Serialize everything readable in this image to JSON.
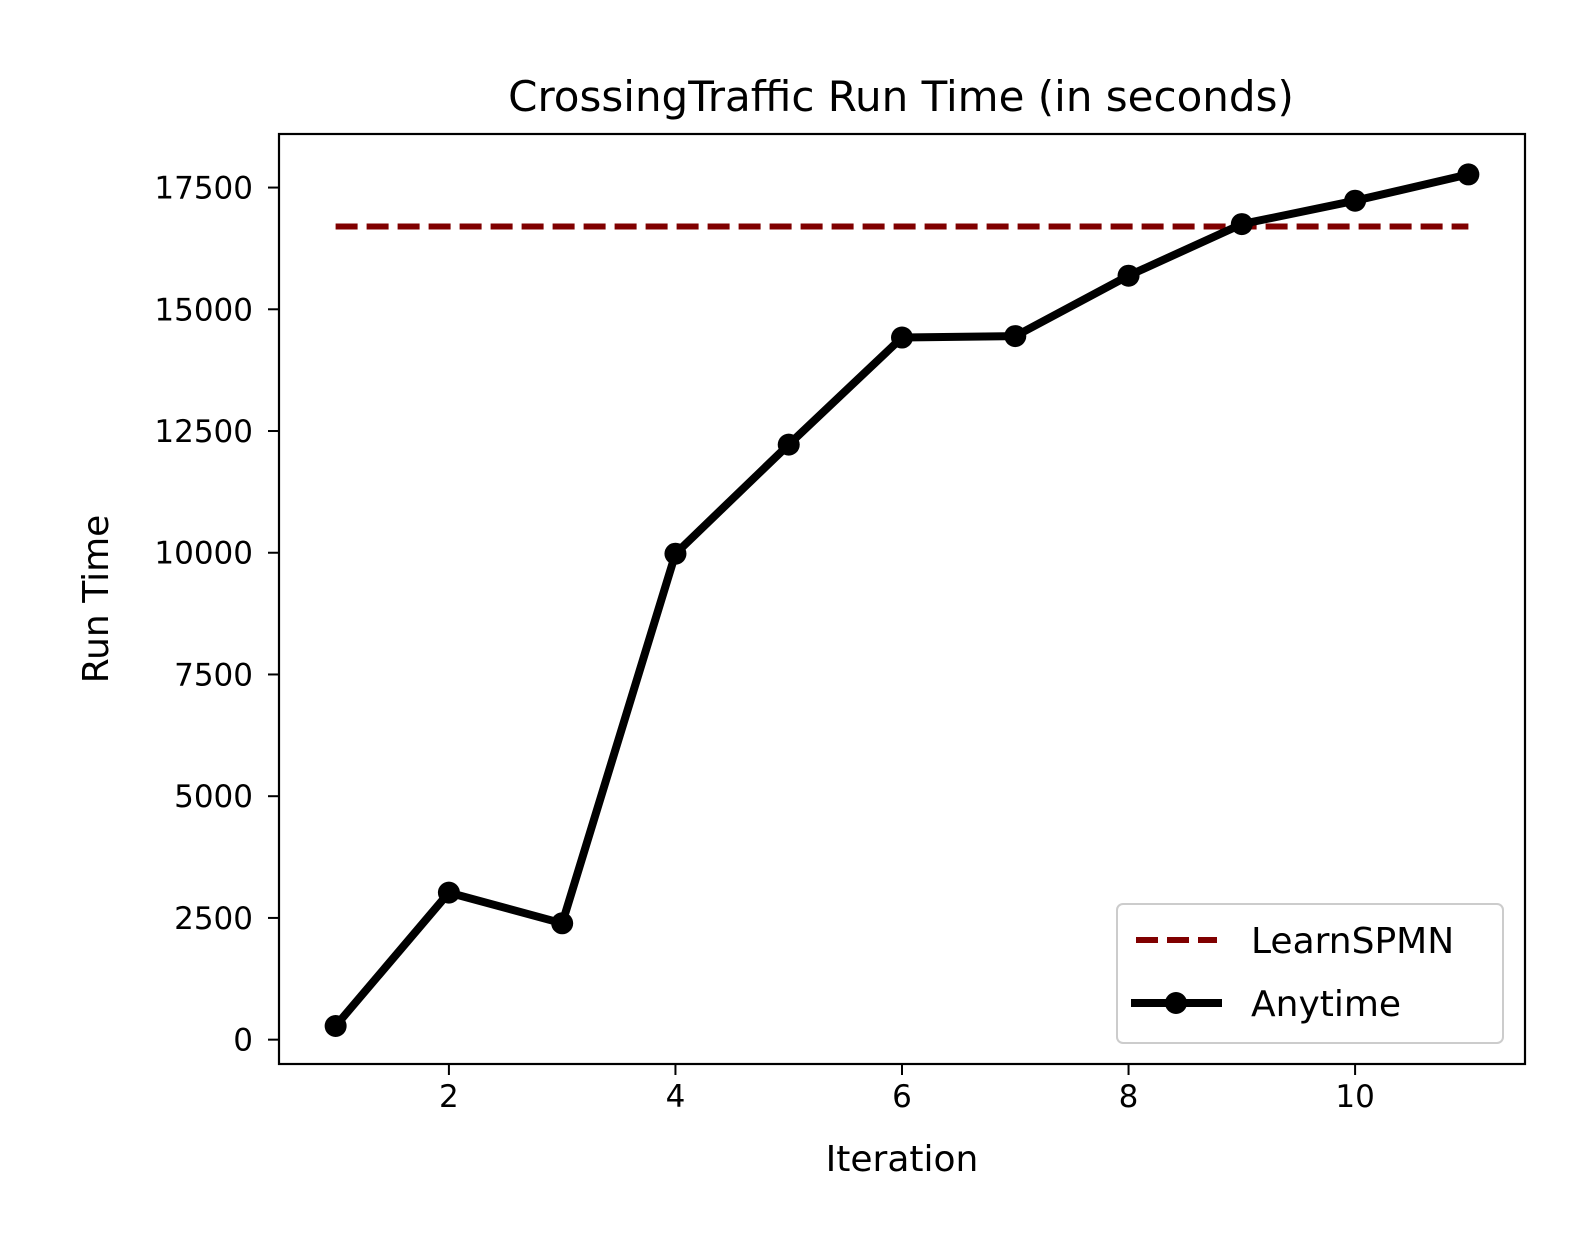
{
  "chart_data": {
    "type": "line",
    "title": "CrossingTraffic Run Time (in seconds)",
    "xlabel": "Iteration",
    "ylabel": "Run Time",
    "xlim": [
      0.5,
      11.5
    ],
    "ylim": [
      -500,
      18600
    ],
    "xticks": [
      2,
      4,
      6,
      8,
      10
    ],
    "yticks": [
      0,
      2500,
      5000,
      7500,
      10000,
      12500,
      15000,
      17500
    ],
    "grid": false,
    "legend_position": "lower right",
    "series": [
      {
        "name": "LearnSPMN",
        "style": "dashed",
        "color": "#800000",
        "x": [
          1,
          11
        ],
        "y": [
          16700,
          16700
        ]
      },
      {
        "name": "Anytime",
        "style": "solid-marker",
        "color": "#000000",
        "x": [
          1,
          2,
          3,
          4,
          5,
          6,
          7,
          8,
          9,
          10,
          11
        ],
        "y": [
          280,
          3020,
          2390,
          9980,
          12220,
          14420,
          14450,
          15690,
          16750,
          17230,
          17770
        ]
      }
    ]
  }
}
